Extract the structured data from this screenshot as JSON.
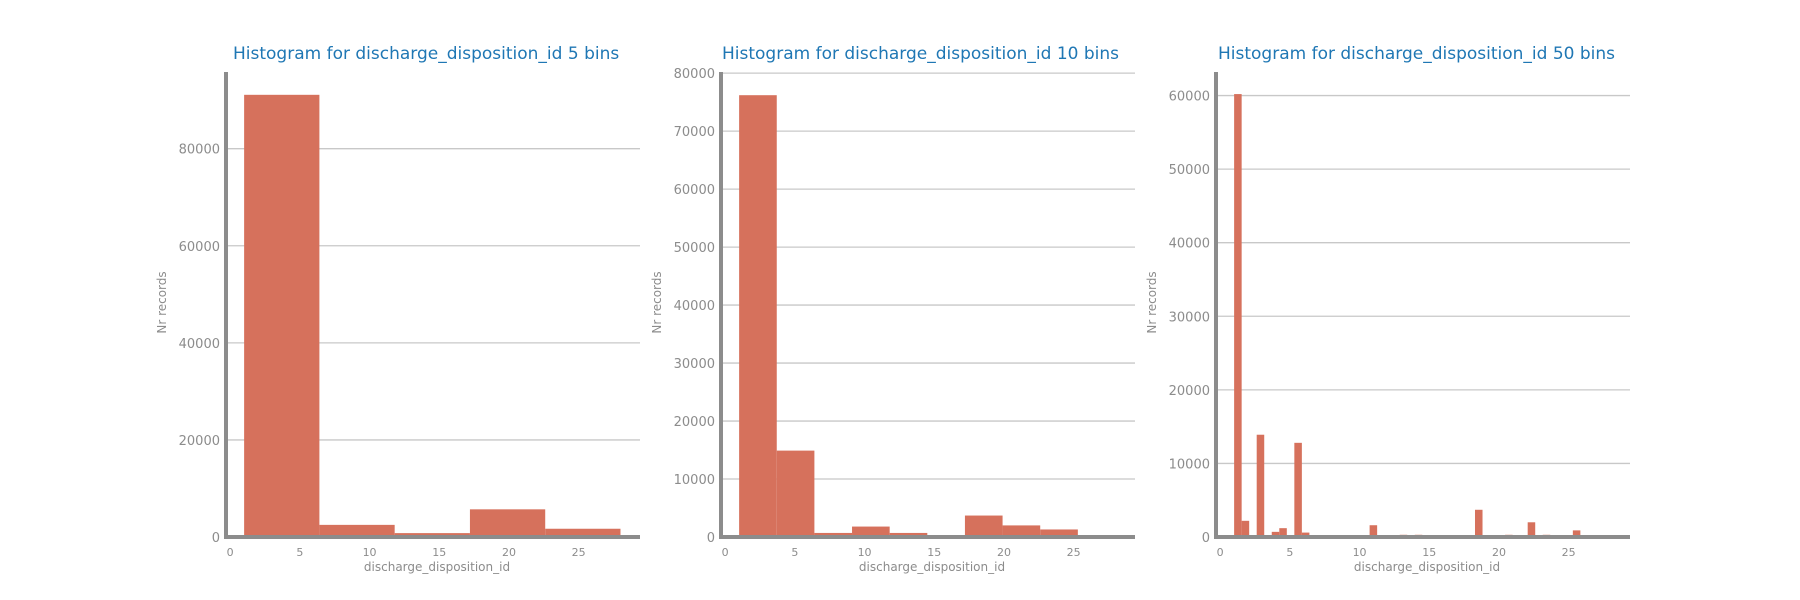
{
  "colors": {
    "bar": "#d6715c",
    "title": "#1f77b4",
    "axis": "#8c8c8c",
    "grid": "#c8c8c8"
  },
  "chart_data": [
    {
      "type": "bar",
      "title": "Histogram for discharge_disposition_id 5 bins",
      "xlabel": "discharge_disposition_id",
      "ylabel": "Nr records",
      "xlim": [
        -0.3,
        29.4
      ],
      "ylim": [
        0,
        95800
      ],
      "xticks": [
        0,
        5,
        10,
        15,
        20,
        25
      ],
      "yticks": [
        0,
        20000,
        40000,
        60000,
        80000
      ],
      "grid": true,
      "bins": [
        {
          "x0": 1.0,
          "x1": 6.4,
          "value": 91100
        },
        {
          "x0": 6.4,
          "x1": 11.8,
          "value": 2500
        },
        {
          "x0": 11.8,
          "x1": 17.2,
          "value": 800
        },
        {
          "x0": 17.2,
          "x1": 22.6,
          "value": 5700
        },
        {
          "x0": 22.6,
          "x1": 28.0,
          "value": 1700
        }
      ]
    },
    {
      "type": "bar",
      "title": "Histogram for discharge_disposition_id 10 bins",
      "xlabel": "discharge_disposition_id",
      "ylabel": "Nr records",
      "xlim": [
        -0.3,
        29.4
      ],
      "ylim": [
        0,
        80200
      ],
      "xticks": [
        0,
        5,
        10,
        15,
        20,
        25
      ],
      "yticks": [
        0,
        10000,
        20000,
        30000,
        40000,
        50000,
        60000,
        70000,
        80000
      ],
      "grid": true,
      "bins": [
        {
          "x0": 1.0,
          "x1": 3.7,
          "value": 76200
        },
        {
          "x0": 3.7,
          "x1": 6.4,
          "value": 14900
        },
        {
          "x0": 6.4,
          "x1": 9.1,
          "value": 700
        },
        {
          "x0": 9.1,
          "x1": 11.8,
          "value": 1800
        },
        {
          "x0": 11.8,
          "x1": 14.5,
          "value": 700
        },
        {
          "x0": 14.5,
          "x1": 17.2,
          "value": 150
        },
        {
          "x0": 17.2,
          "x1": 19.9,
          "value": 3700
        },
        {
          "x0": 19.9,
          "x1": 22.6,
          "value": 2000
        },
        {
          "x0": 22.6,
          "x1": 25.3,
          "value": 1300
        },
        {
          "x0": 25.3,
          "x1": 28.0,
          "value": 0
        }
      ]
    },
    {
      "type": "bar",
      "title": "Histogram for discharge_disposition_id 50 bins",
      "xlabel": "discharge_disposition_id",
      "ylabel": "Nr records",
      "xlim": [
        -0.3,
        29.4
      ],
      "ylim": [
        0,
        63200
      ],
      "xticks": [
        0,
        5,
        10,
        15,
        20,
        25
      ],
      "yticks": [
        0,
        10000,
        20000,
        30000,
        40000,
        50000,
        60000
      ],
      "grid": true,
      "bin_start": 1.0,
      "bin_width": 0.54,
      "values": [
        60200,
        2200,
        0,
        13900,
        0,
        700,
        1200,
        0,
        12800,
        600,
        0,
        0,
        0,
        0,
        0,
        0,
        0,
        0,
        1600,
        0,
        0,
        0,
        300,
        0,
        300,
        0,
        150,
        0,
        0,
        0,
        0,
        0,
        3700,
        0,
        0,
        0,
        300,
        0,
        0,
        2000,
        0,
        300,
        0,
        0,
        0,
        900,
        0,
        0,
        0,
        0
      ]
    }
  ]
}
